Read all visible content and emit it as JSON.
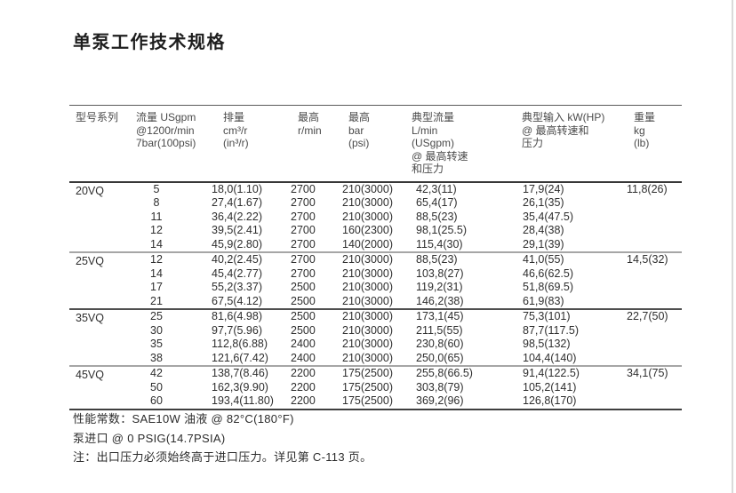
{
  "page_title": "单泵工作技术规格",
  "table": {
    "columns": [
      {
        "id": "model",
        "header_lines": [
          "型号系列"
        ]
      },
      {
        "id": "flow",
        "header_lines": [
          "流量 USgpm",
          "@1200r/min",
          "7bar(100psi)"
        ]
      },
      {
        "id": "displacement",
        "header_lines": [
          "排量",
          "cm³/r",
          "(in³/r)"
        ]
      },
      {
        "id": "max_speed",
        "header_lines": [
          "最高",
          "r/min"
        ]
      },
      {
        "id": "max_pressure",
        "header_lines": [
          "最高",
          "bar",
          "(psi)"
        ]
      },
      {
        "id": "typical_flow",
        "header_lines": [
          "典型流量",
          "L/min",
          "(USgpm)",
          "@ 最高转速",
          "和压力"
        ]
      },
      {
        "id": "typical_input",
        "header_lines": [
          "典型输入 kW(HP)",
          "@ 最高转速和",
          "压力"
        ]
      },
      {
        "id": "weight",
        "header_lines": [
          "重量",
          "kg",
          "(lb)"
        ]
      }
    ],
    "sections": [
      {
        "model": "20VQ",
        "weight": "11,8(26)",
        "rows": [
          [
            "5",
            "18,0(1.10)",
            "2700",
            "210(3000)",
            "42,3(11)",
            "17,9(24)"
          ],
          [
            "8",
            "27,4(1.67)",
            "2700",
            "210(3000)",
            "65,4(17)",
            "26,1(35)"
          ],
          [
            "11",
            "36,4(2.22)",
            "2700",
            "210(3000)",
            "88,5(23)",
            "35,4(47.5)"
          ],
          [
            "12",
            "39,5(2.41)",
            "2700",
            "160(2300)",
            "98,1(25.5)",
            "28,4(38)"
          ],
          [
            "14",
            "45,9(2.80)",
            "2700",
            "140(2000)",
            "115,4(30)",
            "29,1(39)"
          ]
        ]
      },
      {
        "model": "25VQ",
        "weight": "14,5(32)",
        "rows": [
          [
            "12",
            "40,2(2.45)",
            "2700",
            "210(3000)",
            "88,5(23)",
            "41,0(55)"
          ],
          [
            "14",
            "45,4(2.77)",
            "2700",
            "210(3000)",
            "103,8(27)",
            "46,6(62.5)"
          ],
          [
            "17",
            "55,2(3.37)",
            "2500",
            "210(3000)",
            "119,2(31)",
            "51,8(69.5)"
          ],
          [
            "21",
            "67,5(4.12)",
            "2500",
            "210(3000)",
            "146,2(38)",
            "61,9(83)"
          ]
        ]
      },
      {
        "model": "35VQ",
        "weight": "22,7(50)",
        "rows": [
          [
            "25",
            "81,6(4.98)",
            "2500",
            "210(3000)",
            "173,1(45)",
            "75,3(101)"
          ],
          [
            "30",
            "97,7(5.96)",
            "2500",
            "210(3000)",
            "211,5(55)",
            "87,7(117.5)"
          ],
          [
            "35",
            "112,8(6.88)",
            "2400",
            "210(3000)",
            "230,8(60)",
            "98,5(132)"
          ],
          [
            "38",
            "121,6(7.42)",
            "2400",
            "210(3000)",
            "250,0(65)",
            "104,4(140)"
          ]
        ]
      },
      {
        "model": "45VQ",
        "weight": "34,1(75)",
        "rows": [
          [
            "42",
            "138,7(8.46)",
            "2200",
            "175(2500)",
            "255,8(66.5)",
            "91,4(122.5)"
          ],
          [
            "50",
            "162,3(9.90)",
            "2200",
            "175(2500)",
            "303,8(79)",
            "105,2(141)"
          ],
          [
            "60",
            "193,4(11.80)",
            "2200",
            "175(2500)",
            "369,2(96)",
            "126,8(170)"
          ]
        ]
      }
    ]
  },
  "notes": [
    "性能常数：SAE10W 油液 @ 82°C(180°F)",
    "泵进口 @ 0 PSIG(14.7PSIA)",
    "注：出口压力必须始终高于进口压力。详见第 C-113 页。"
  ]
}
